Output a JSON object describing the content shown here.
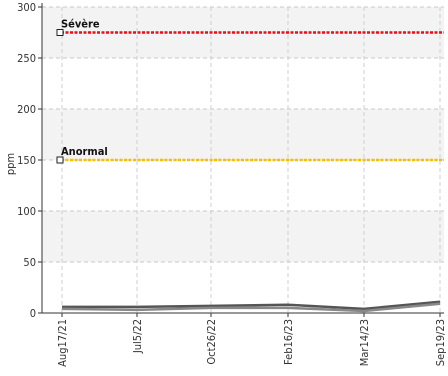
{
  "chart_data": {
    "type": "line",
    "ylabel": "ppm",
    "ylim": [
      0,
      300
    ],
    "y_ticks": [
      "0",
      "50",
      "100",
      "150",
      "200",
      "250",
      "300"
    ],
    "x_ticks": [
      "Aug17/21",
      "Jul5/22",
      "Oct26/22",
      "Feb16/23",
      "Mar14/23",
      "Sep19/23"
    ],
    "grid": true,
    "thresholds": [
      {
        "label": "Sévère",
        "value": 275,
        "color": "#e8101a"
      },
      {
        "label": "Anormal",
        "value": 150,
        "color": "#f2c200"
      }
    ],
    "series": [
      {
        "color": "#555555",
        "points": [
          {
            "x": "Aug17/21",
            "y": 6
          },
          {
            "x": "Jul5/22",
            "y": 6
          },
          {
            "x": "Oct26/22",
            "y": 7
          },
          {
            "x": "Feb16/23",
            "y": 8
          },
          {
            "x": "Mar14/23",
            "y": 4
          },
          {
            "x": "Sep19/23",
            "y": 11
          }
        ]
      },
      {
        "color": "#888888",
        "points": [
          {
            "x": "Aug17/21",
            "y": 4
          },
          {
            "x": "Jul5/22",
            "y": 3
          },
          {
            "x": "Oct26/22",
            "y": 5
          },
          {
            "x": "Feb16/23",
            "y": 5
          },
          {
            "x": "Mar14/23",
            "y": 2
          },
          {
            "x": "Sep19/23",
            "y": 9
          }
        ]
      }
    ]
  }
}
